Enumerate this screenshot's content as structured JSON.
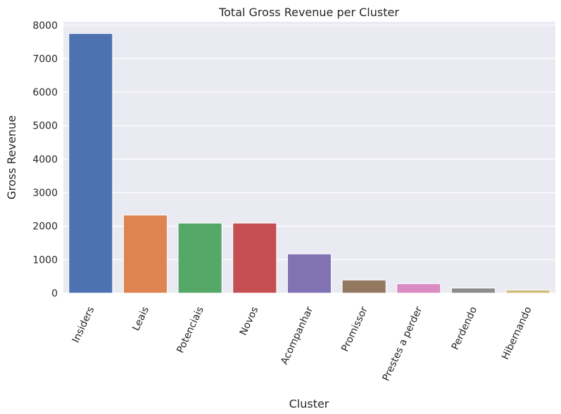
{
  "chart_data": {
    "type": "bar",
    "title": "Total Gross Revenue per Cluster",
    "xlabel": "Cluster",
    "ylabel": "Gross Revenue",
    "categories": [
      "Insiders",
      "Leais",
      "Potenciais",
      "Novos",
      "Acompanhar",
      "Promissor",
      "Prestes a perder",
      "Perdendo",
      "Hibernando"
    ],
    "values": [
      7750,
      2330,
      2090,
      2090,
      1170,
      390,
      280,
      150,
      90
    ],
    "colors": [
      "#4c72b0",
      "#dd8452",
      "#55a868",
      "#c44e52",
      "#8172b3",
      "#937860",
      "#da8bc3",
      "#8c8c8c",
      "#ccb974"
    ],
    "ylim": [
      0,
      8100
    ],
    "yticks": [
      0,
      1000,
      2000,
      3000,
      4000,
      5000,
      6000,
      7000,
      8000
    ],
    "ytick_labels": [
      "0",
      "1000",
      "2000",
      "3000",
      "4000",
      "5000",
      "6000",
      "7000",
      "8000"
    ],
    "grid": true,
    "background": "#eaeaf2",
    "grid_color": "#ffffff",
    "legend": "none"
  }
}
